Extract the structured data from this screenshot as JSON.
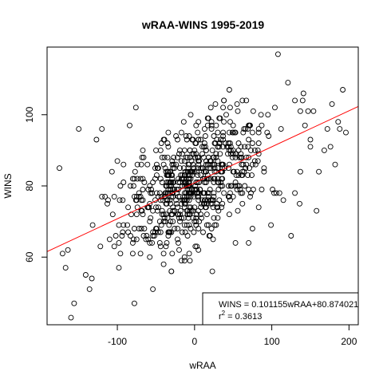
{
  "chart_data": {
    "type": "scatter",
    "title": "wRAA-WINS 1995-2019",
    "xlabel": "wRAA",
    "ylabel": "WINS",
    "xlim": [
      -191,
      212
    ],
    "ylim": [
      41,
      119
    ],
    "x_ticks": [
      -100,
      0,
      100,
      200
    ],
    "y_ticks": [
      60,
      80,
      100
    ],
    "x_tick_labels": [
      "-100",
      "0",
      "100",
      "200"
    ],
    "y_tick_labels": [
      "60",
      "80",
      "100"
    ],
    "grid": false,
    "point_style": "open-circle",
    "point_color": "#000000",
    "regression": {
      "slope": 0.101155,
      "intercept": 80.874021,
      "color": "#ff0000",
      "equation_text": "WINS = 0.101155wRAA+80.874021",
      "r2_label": "r",
      "r2_superscript": "2",
      "r2_value": " = 0.3613"
    },
    "legend_position": "bottom-right",
    "n_points": 750,
    "points": [
      [
        -175,
        85
      ],
      [
        -171,
        61
      ],
      [
        -167,
        57
      ],
      [
        -164,
        62
      ],
      [
        -160,
        43
      ],
      [
        -156,
        47
      ],
      [
        -150,
        96
      ],
      [
        -141,
        55
      ],
      [
        -136,
        51
      ],
      [
        -133,
        54
      ],
      [
        -127,
        93
      ],
      [
        -120,
        96
      ],
      [
        -112,
        76
      ],
      [
        -107,
        84
      ],
      [
        -104,
        63
      ],
      [
        -100,
        87
      ],
      [
        -92,
        86
      ],
      [
        -84,
        97
      ],
      [
        -78,
        47
      ],
      [
        -76,
        102
      ],
      [
        -54,
        51
      ],
      [
        -40,
        93
      ],
      [
        -30,
        56
      ],
      [
        -13,
        59
      ],
      [
        -6,
        59
      ],
      [
        23,
        56
      ],
      [
        38,
        104
      ],
      [
        45,
        107
      ],
      [
        47,
        89
      ],
      [
        62,
        104
      ],
      [
        67,
        104
      ],
      [
        70,
        64
      ],
      [
        75,
        68
      ],
      [
        83,
        74
      ],
      [
        99,
        69
      ],
      [
        101,
        79
      ],
      [
        103,
        78
      ],
      [
        108,
        117
      ],
      [
        110,
        78
      ],
      [
        115,
        76
      ],
      [
        121,
        109
      ],
      [
        125,
        66
      ],
      [
        130,
        78
      ],
      [
        130,
        104
      ],
      [
        136,
        75
      ],
      [
        137,
        101
      ],
      [
        140,
        104
      ],
      [
        141,
        106
      ],
      [
        143,
        97
      ],
      [
        147,
        101
      ],
      [
        150,
        93
      ],
      [
        150,
        91
      ],
      [
        154,
        101
      ],
      [
        158,
        73
      ],
      [
        161,
        84
      ],
      [
        168,
        90
      ],
      [
        172,
        96
      ],
      [
        176,
        91
      ],
      [
        178,
        103
      ],
      [
        182,
        86
      ],
      [
        186,
        98
      ],
      [
        188,
        96
      ],
      [
        192,
        107
      ],
      [
        196,
        95
      ]
    ]
  }
}
